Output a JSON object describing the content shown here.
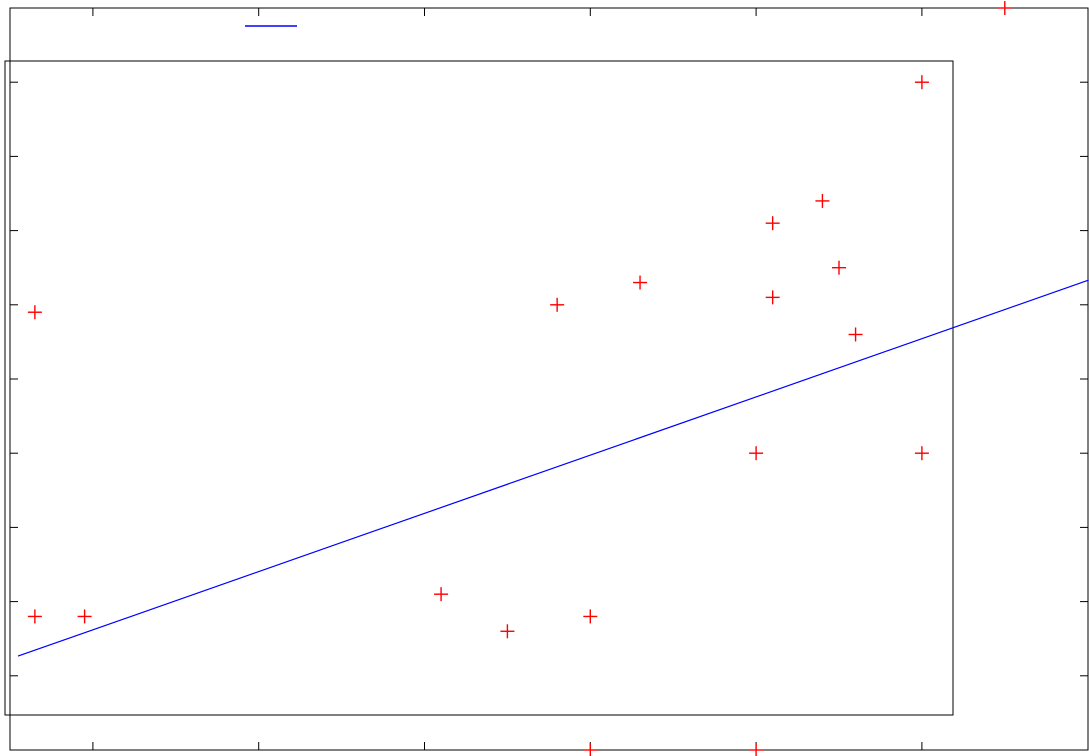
{
  "chart_data": {
    "type": "scatter",
    "title": "",
    "xlabel": "",
    "ylabel": "",
    "xlim": [
      0,
      13
    ],
    "ylim": [
      0,
      10
    ],
    "grid": false,
    "legend": {
      "position": "top-left",
      "entries": [
        {
          "name": "",
          "color": "#0000ff",
          "style": "line"
        }
      ]
    },
    "x_ticks": [
      1,
      3,
      5,
      7,
      9,
      11
    ],
    "y_ticks": [
      1,
      2,
      3,
      4,
      5,
      6,
      7,
      8,
      9
    ],
    "series": [
      {
        "kind": "points",
        "marker": "plus",
        "color": "#ff0000",
        "points": [
          [
            0.3,
            5.9
          ],
          [
            0.3,
            1.8
          ],
          [
            0.9,
            1.8
          ],
          [
            5.2,
            2.1
          ],
          [
            6.0,
            1.6
          ],
          [
            6.6,
            6.0
          ],
          [
            7.0,
            1.8
          ],
          [
            7.6,
            6.3
          ],
          [
            7.0,
            0.0
          ],
          [
            9.0,
            4.0
          ],
          [
            9.0,
            0.0
          ],
          [
            9.2,
            7.1
          ],
          [
            9.2,
            6.1
          ],
          [
            9.8,
            7.4
          ],
          [
            10.0,
            6.5
          ],
          [
            10.2,
            5.6
          ],
          [
            11.0,
            9.0
          ],
          [
            11.0,
            4.0
          ],
          [
            12.0,
            10.0
          ]
        ]
      },
      {
        "kind": "fit-line",
        "color": "#0000ff",
        "points": [
          [
            0.0,
            1.4
          ],
          [
            13.0,
            6.4
          ]
        ]
      }
    ]
  }
}
